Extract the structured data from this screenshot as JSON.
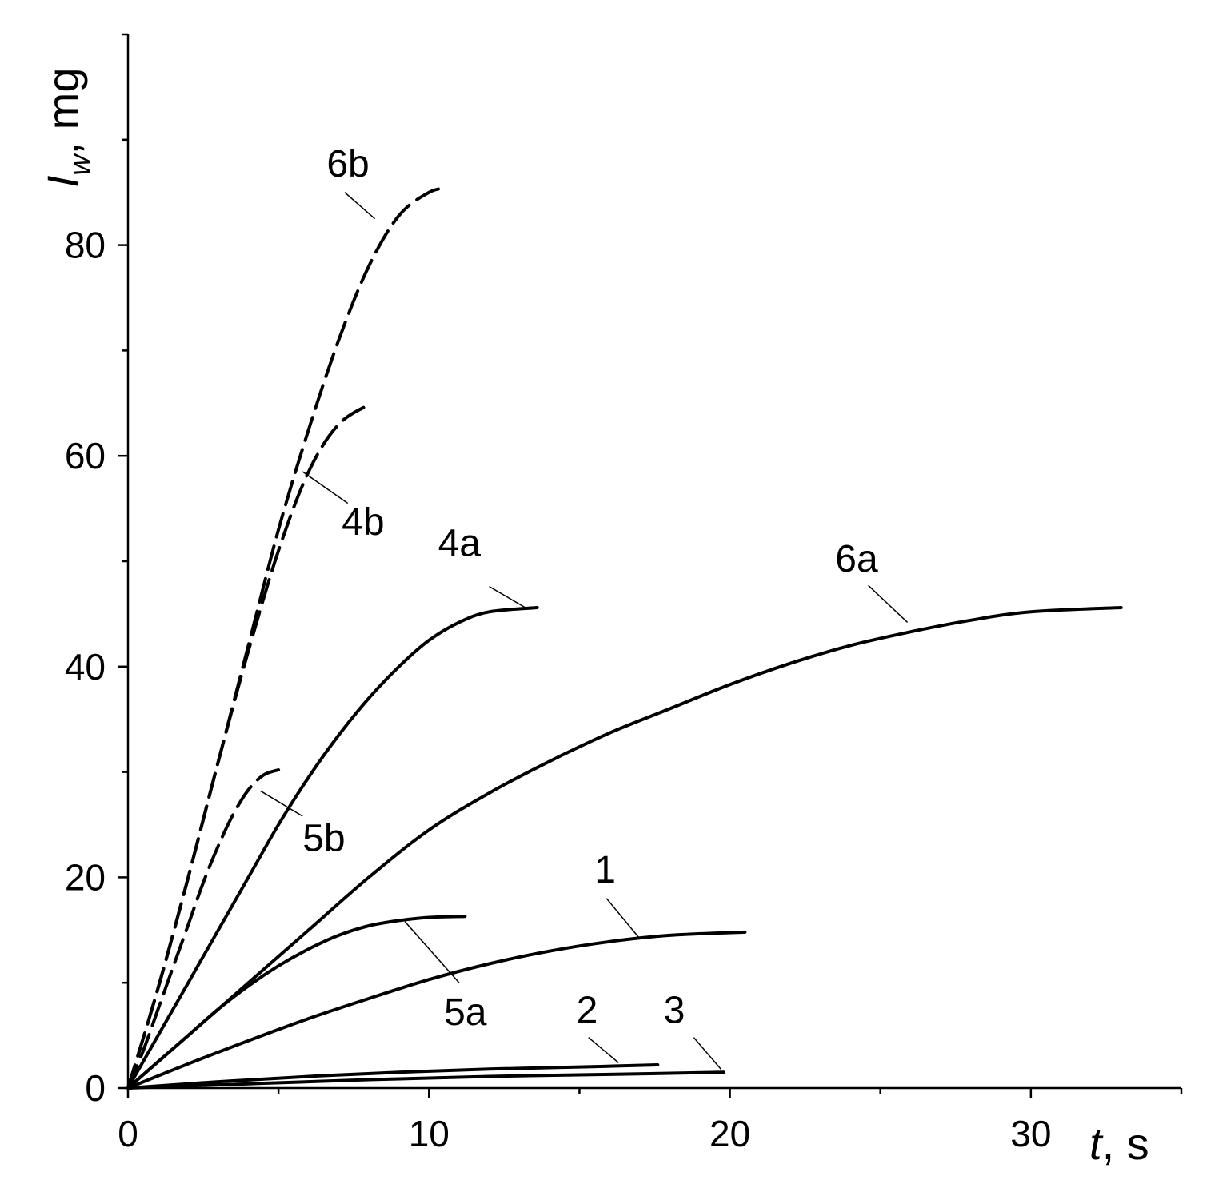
{
  "chart_data": {
    "type": "line",
    "xlabel": {
      "symbol": "t",
      "unit": ", s"
    },
    "ylabel": {
      "symbol": "I",
      "subscript": "w",
      "unit": ", mg"
    },
    "xlim": [
      0,
      35
    ],
    "ylim": [
      0,
      100
    ],
    "x_major_ticks": [
      0,
      10,
      20,
      30
    ],
    "x_minor_ticks": [
      5,
      15,
      25,
      35
    ],
    "x_tick_labels": [
      "0",
      "10",
      "20",
      "30"
    ],
    "y_major_ticks": [
      0,
      20,
      40,
      60,
      80
    ],
    "y_minor_ticks": [
      10,
      30,
      50,
      70,
      90,
      100
    ],
    "y_tick_labels": [
      "0",
      "20",
      "40",
      "60",
      "80"
    ],
    "grid": false,
    "series": [
      {
        "name": "1",
        "style": "solid",
        "x": [
          0,
          2,
          4,
          6,
          8,
          10,
          12,
          14,
          16,
          18,
          20.5
        ],
        "y": [
          0,
          2.3,
          4.5,
          6.6,
          8.5,
          10.3,
          11.8,
          13.0,
          13.9,
          14.5,
          14.8
        ],
        "label_pos": [
          15.5,
          19.5
        ],
        "leader": [
          [
            15.9,
            18.0
          ],
          [
            17.0,
            14.2
          ]
        ]
      },
      {
        "name": "2",
        "style": "solid",
        "x": [
          0,
          3,
          6,
          9,
          12,
          15,
          17.6
        ],
        "y": [
          0,
          0.6,
          1.1,
          1.5,
          1.8,
          2.0,
          2.2
        ],
        "label_pos": [
          14.9,
          6.2
        ],
        "leader": [
          [
            15.3,
            4.8
          ],
          [
            16.3,
            2.4
          ]
        ]
      },
      {
        "name": "3",
        "style": "solid",
        "x": [
          0,
          4,
          8,
          12,
          16,
          19.8
        ],
        "y": [
          0,
          0.4,
          0.8,
          1.1,
          1.3,
          1.5
        ],
        "label_pos": [
          17.8,
          6.2
        ],
        "leader": [
          [
            18.8,
            4.8
          ],
          [
            19.7,
            1.8
          ]
        ]
      },
      {
        "name": "4a",
        "style": "solid",
        "x": [
          0,
          1,
          2,
          3,
          4,
          5,
          6,
          7,
          8,
          9,
          10,
          11,
          12,
          13.6
        ],
        "y": [
          0,
          5,
          10,
          15,
          20,
          25,
          29.5,
          33.5,
          37,
          40,
          42.5,
          44.2,
          45.2,
          45.6
        ],
        "label_pos": [
          10.3,
          50.5
        ],
        "leader": [
          [
            12.0,
            47.6
          ],
          [
            13.2,
            45.6
          ]
        ]
      },
      {
        "name": "4b",
        "style": "dashed",
        "x": [
          0,
          1,
          2,
          3,
          4,
          5,
          6,
          7,
          8.1
        ],
        "y": [
          0,
          9.5,
          20,
          31,
          41.5,
          51,
          58.5,
          63,
          65
        ],
        "label_pos": [
          7.1,
          52.5
        ],
        "leader": [
          [
            5.8,
            58.5
          ],
          [
            7.3,
            55.5
          ]
        ]
      },
      {
        "name": "5a",
        "style": "solid",
        "x": [
          0,
          1,
          2,
          3,
          4,
          5,
          6,
          7,
          8,
          9,
          10,
          11.2
        ],
        "y": [
          0,
          2.5,
          5,
          7.5,
          9.7,
          11.6,
          13.2,
          14.5,
          15.4,
          15.9,
          16.2,
          16.3
        ],
        "label_pos": [
          10.5,
          6.0
        ],
        "leader": [
          [
            9.2,
            15.8
          ],
          [
            11.0,
            10.0
          ]
        ]
      },
      {
        "name": "5b",
        "style": "dashed",
        "x": [
          0,
          0.5,
          1,
          1.5,
          2,
          2.5,
          3,
          3.5,
          4,
          4.5,
          5
        ],
        "y": [
          0,
          3.5,
          7.5,
          11.5,
          15.5,
          19.5,
          23,
          26,
          28.3,
          29.7,
          30.2
        ],
        "label_pos": [
          5.8,
          22.5
        ],
        "leader": [
          [
            4.4,
            28.2
          ],
          [
            5.8,
            25.8
          ]
        ]
      },
      {
        "name": "6a",
        "style": "solid",
        "x": [
          0,
          2,
          4,
          6,
          8,
          10,
          12,
          14,
          16,
          18,
          20,
          22,
          24,
          26,
          28,
          30,
          33
        ],
        "y": [
          0,
          5,
          10,
          15,
          20,
          24.5,
          28,
          31,
          33.7,
          36,
          38.3,
          40.3,
          42,
          43.3,
          44.4,
          45.2,
          45.6
        ],
        "label_pos": [
          23.5,
          49.0
        ],
        "leader": [
          [
            24.6,
            47.7
          ],
          [
            25.9,
            44.2
          ]
        ]
      },
      {
        "name": "6b",
        "style": "dashed",
        "x": [
          0,
          1,
          2,
          3,
          4,
          5,
          6,
          7,
          8,
          9,
          10,
          10.6
        ],
        "y": [
          0,
          9.5,
          20,
          31,
          42,
          53,
          62.5,
          71,
          78,
          82.8,
          85,
          85.4
        ],
        "label_pos": [
          6.6,
          86.5
        ],
        "leader": [
          [
            7.2,
            85.0
          ],
          [
            8.2,
            82.5
          ]
        ]
      }
    ]
  }
}
